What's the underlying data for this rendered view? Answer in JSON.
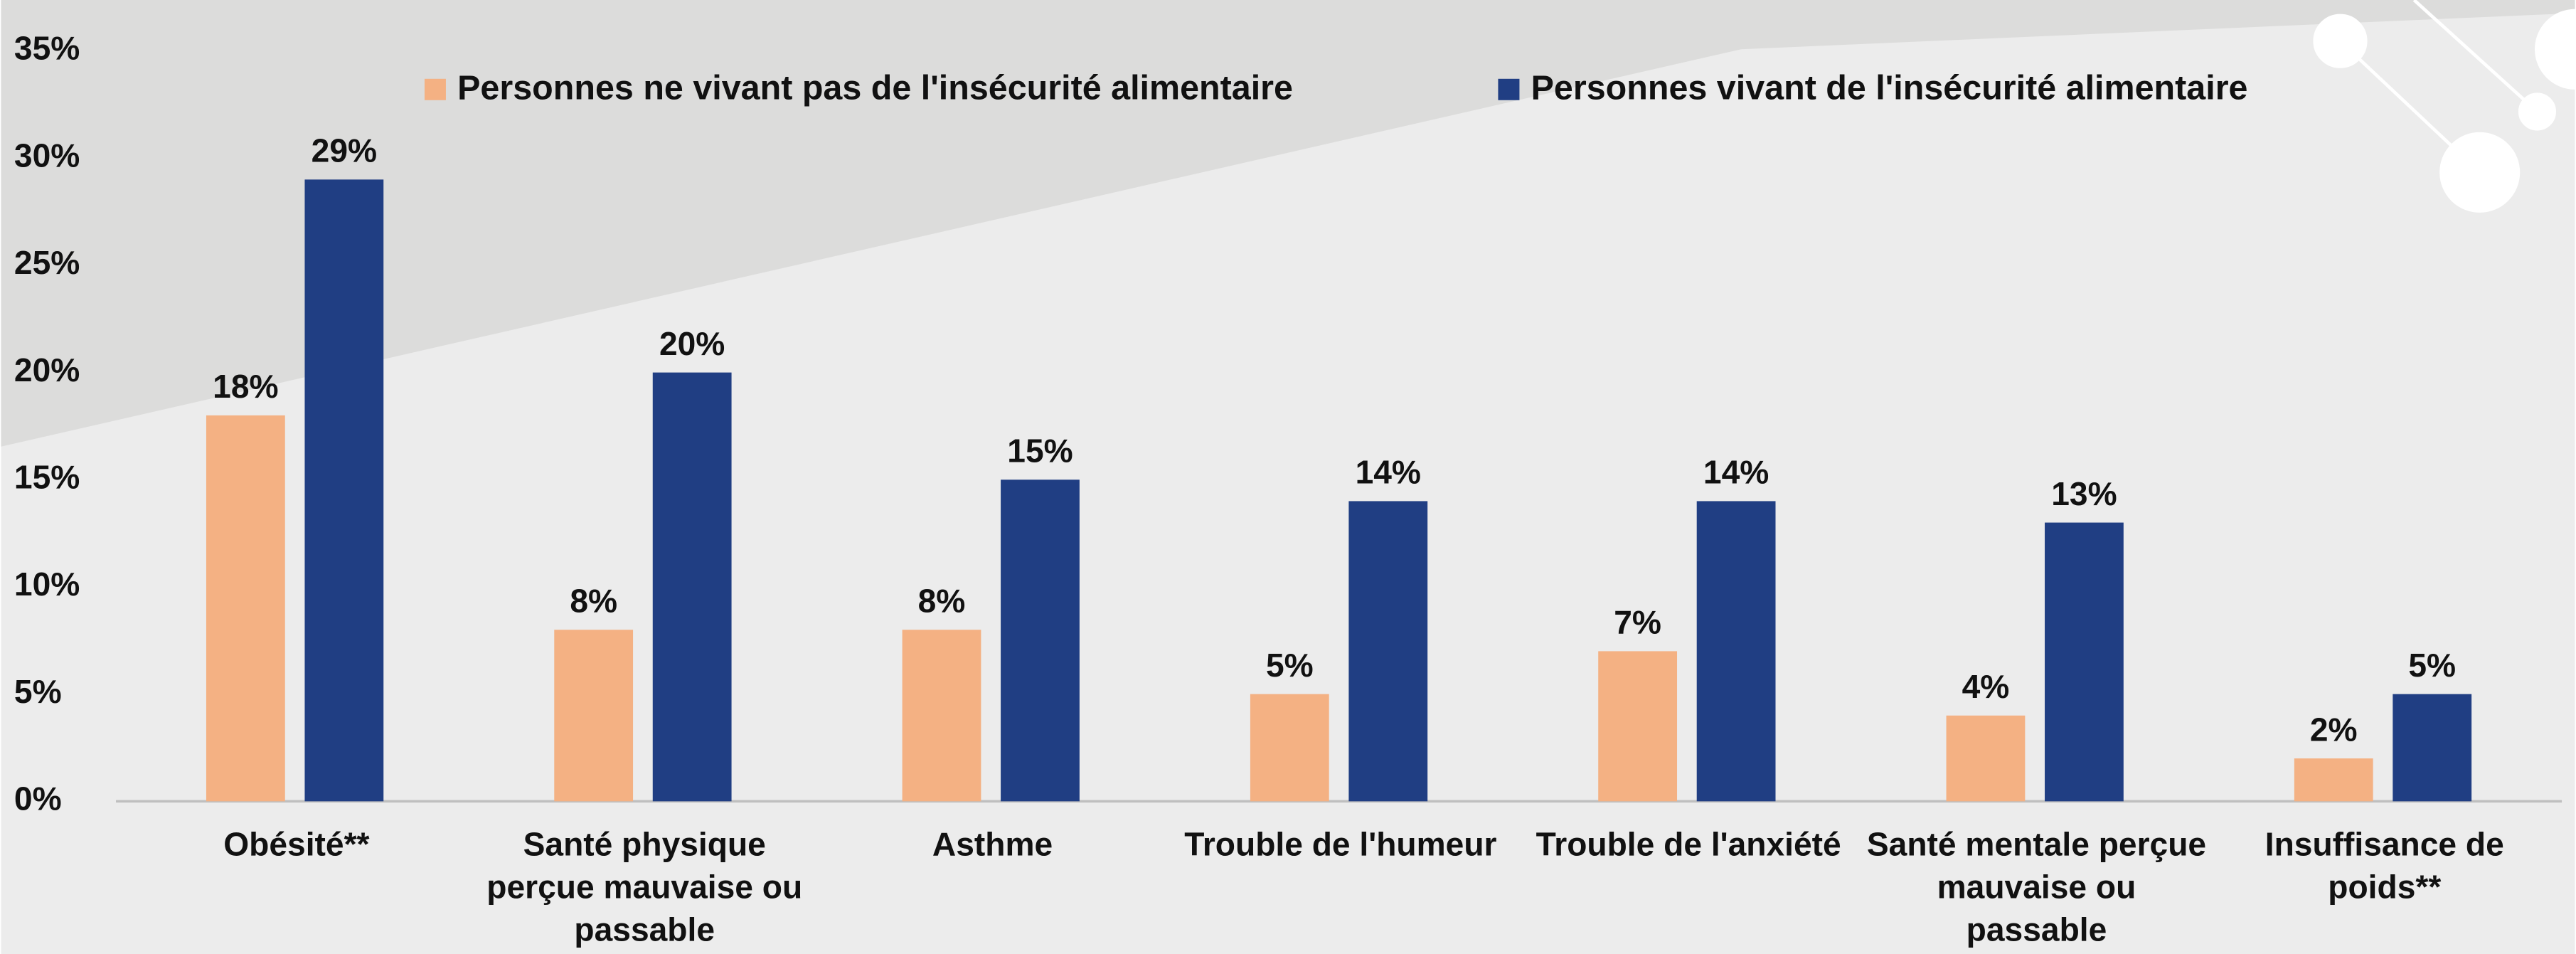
{
  "chart_data": {
    "type": "bar",
    "categories": [
      "Obésité**",
      "Santé physique perçue mauvaise ou passable",
      "Asthme",
      "Trouble de l'humeur",
      "Trouble de l'anxiété",
      "Santé mentale perçue mauvaise ou passable",
      "Insuffisance de poids**"
    ],
    "series": [
      {
        "name": "Personnes ne vivant pas de l'insécurité alimentaire",
        "color": "#f4b183",
        "values": [
          18,
          8,
          8,
          5,
          7,
          4,
          2
        ],
        "value_labels": [
          "18%",
          "8%",
          "8%",
          "5%",
          "7%",
          "4%",
          "2%"
        ]
      },
      {
        "name": "Personnes vivant de l'insécurité alimentaire",
        "color": "#203e83",
        "values": [
          29,
          20,
          15,
          14,
          14,
          13,
          5
        ],
        "value_labels": [
          "29%",
          "20%",
          "15%",
          "14%",
          "14%",
          "13%",
          "5%"
        ]
      }
    ],
    "ylim": [
      0,
      35
    ],
    "yticks": [
      {
        "value": 0,
        "label": "0%"
      },
      {
        "value": 5,
        "label": "5%"
      },
      {
        "value": 10,
        "label": "10%"
      },
      {
        "value": 15,
        "label": "15%"
      },
      {
        "value": 20,
        "label": "20%"
      },
      {
        "value": 25,
        "label": "25%"
      },
      {
        "value": 30,
        "label": "30%"
      },
      {
        "value": 35,
        "label": "35%"
      }
    ],
    "grid": false,
    "legend": "top"
  }
}
